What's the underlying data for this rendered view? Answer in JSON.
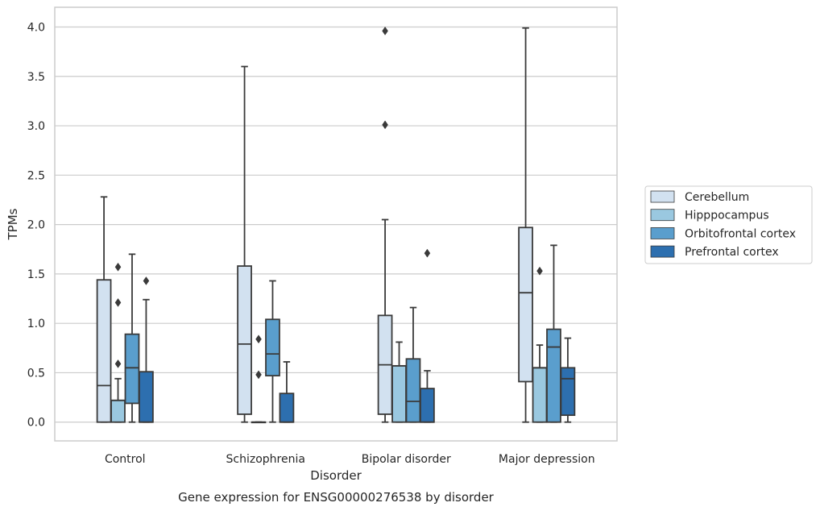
{
  "chart_data": {
    "type": "box",
    "xlabel": "Disorder",
    "ylabel": "TPMs",
    "caption": "Gene expression for ENSG00000276538 by disorder",
    "ylim": [
      -0.19,
      4.2
    ],
    "yticks": [
      "0.0",
      "0.5",
      "1.0",
      "1.5",
      "2.0",
      "2.5",
      "3.0",
      "3.5",
      "4.0"
    ],
    "grid": "horizontal",
    "legend_position": "right",
    "categories": [
      "Control",
      "Schizophrenia",
      "Bipolar disorder",
      "Major depression"
    ],
    "series": [
      {
        "name": "Cerebellum",
        "color": "#d2e1f0",
        "boxes": [
          {
            "min": 0.0,
            "q1": 0.0,
            "median": 0.37,
            "q3": 1.44,
            "max": 2.28,
            "outliers": []
          },
          {
            "min": 0.0,
            "q1": 0.08,
            "median": 0.79,
            "q3": 1.58,
            "max": 3.6,
            "outliers": []
          },
          {
            "min": 0.0,
            "q1": 0.08,
            "median": 0.58,
            "q3": 1.08,
            "max": 2.05,
            "outliers": [
              3.96,
              3.01
            ]
          },
          {
            "min": 0.0,
            "q1": 0.41,
            "median": 1.31,
            "q3": 1.97,
            "max": 3.99,
            "outliers": []
          }
        ]
      },
      {
        "name": "Hipppocampus",
        "color": "#9ac8e0",
        "boxes": [
          {
            "min": 0.0,
            "q1": 0.0,
            "median": 0.22,
            "q3": 0.22,
            "max": 0.44,
            "outliers": [
              1.57,
              1.21,
              0.59
            ]
          },
          {
            "min": 0.0,
            "q1": 0.0,
            "median": 0.0,
            "q3": 0.0,
            "max": 0.0,
            "outliers": [
              0.84,
              0.48
            ]
          },
          {
            "min": 0.0,
            "q1": 0.0,
            "median": 0.57,
            "q3": 0.57,
            "max": 0.81,
            "outliers": []
          },
          {
            "min": 0.0,
            "q1": 0.0,
            "median": 0.55,
            "q3": 0.55,
            "max": 0.78,
            "outliers": [
              1.53
            ]
          }
        ]
      },
      {
        "name": "Orbitofrontal cortex",
        "color": "#5a9ecd",
        "boxes": [
          {
            "min": 0.0,
            "q1": 0.19,
            "median": 0.55,
            "q3": 0.89,
            "max": 1.7,
            "outliers": []
          },
          {
            "min": 0.0,
            "q1": 0.47,
            "median": 0.69,
            "q3": 1.04,
            "max": 1.43,
            "outliers": []
          },
          {
            "min": 0.0,
            "q1": 0.0,
            "median": 0.21,
            "q3": 0.64,
            "max": 1.16,
            "outliers": []
          },
          {
            "min": 0.0,
            "q1": 0.0,
            "median": 0.76,
            "q3": 0.94,
            "max": 1.79,
            "outliers": []
          }
        ]
      },
      {
        "name": "Prefrontal cortex",
        "color": "#2d6faf",
        "boxes": [
          {
            "min": 0.0,
            "q1": 0.0,
            "median": 0.0,
            "q3": 0.51,
            "max": 1.24,
            "outliers": [
              1.43
            ]
          },
          {
            "min": 0.0,
            "q1": 0.0,
            "median": 0.0,
            "q3": 0.29,
            "max": 0.61,
            "outliers": []
          },
          {
            "min": 0.0,
            "q1": 0.0,
            "median": 0.0,
            "q3": 0.34,
            "max": 0.52,
            "outliers": [
              1.71
            ]
          },
          {
            "min": 0.0,
            "q1": 0.07,
            "median": 0.44,
            "q3": 0.55,
            "max": 0.85,
            "outliers": []
          }
        ]
      }
    ]
  }
}
